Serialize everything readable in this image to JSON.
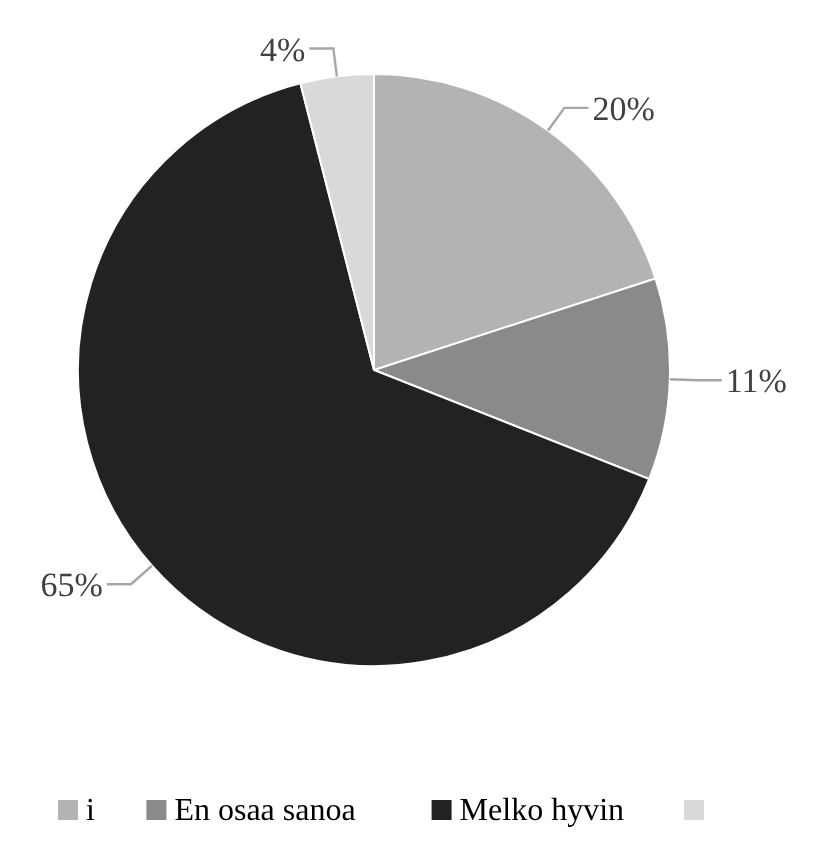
{
  "chart_data": {
    "type": "pie",
    "categories": [
      "i",
      "En osaa sanoa",
      "Melko hyvin",
      null
    ],
    "values": [
      20,
      11,
      65,
      4
    ],
    "colors": [
      "#b3b3b3",
      "#8a8a8a",
      "#222222",
      "#d9d9d9"
    ],
    "value_labels": [
      "20%",
      "11%",
      "65%",
      "4%"
    ],
    "legend": "bottom"
  }
}
